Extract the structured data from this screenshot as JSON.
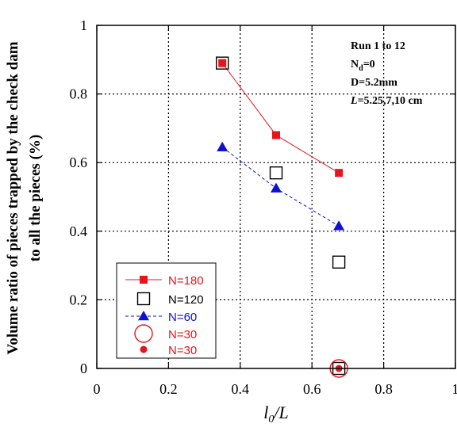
{
  "chart_data": {
    "type": "scatter",
    "xlabel_main": "l",
    "xlabel_sub": "0",
    "xlabel_tail": "/L",
    "ylabel_line1": "Volume ratio of pieces trapped by the check dam",
    "ylabel_line2": "to all the pieces (%)",
    "xlim": [
      0,
      1
    ],
    "ylim": [
      0,
      1
    ],
    "xticks": [
      0,
      0.2,
      0.4,
      0.6,
      0.8,
      1
    ],
    "xtick_labels": [
      "0",
      "0.2",
      "0.4",
      "0.6",
      "0.8",
      "1"
    ],
    "yticks": [
      0,
      0.2,
      0.4,
      0.6,
      0.8,
      1
    ],
    "ytick_labels": [
      "0",
      "0.2",
      "0.4",
      "0.6",
      "0.8",
      "1"
    ],
    "grid": "dotted",
    "annotation": {
      "line1": "Run 1 to 12",
      "line2_main": "N",
      "line2_sub": "d",
      "line2_tail": "=0",
      "line3": "D=5.2mm",
      "line4_italic": "L",
      "line4_tail": "=5.25,7,10 cm"
    },
    "legend_position": "bottom-left",
    "series": [
      {
        "name": "N=180",
        "marker": "filled-square",
        "line": "solid",
        "color": "#e8141b",
        "x": [
          0.35,
          0.5,
          0.675
        ],
        "y": [
          0.89,
          0.68,
          0.57
        ]
      },
      {
        "name": "N=120",
        "marker": "open-square",
        "line": "none",
        "color": "#000000",
        "x": [
          0.35,
          0.5,
          0.675,
          0.675
        ],
        "y": [
          0.89,
          0.57,
          0.31,
          0.0
        ]
      },
      {
        "name": "N=60",
        "marker": "filled-triangle",
        "line": "dashed",
        "color": "#1010d0",
        "x": [
          0.35,
          0.5,
          0.675
        ],
        "y": [
          0.645,
          0.525,
          0.415
        ]
      },
      {
        "name": "N=30",
        "marker": "open-circle",
        "line": "none",
        "color": "#e8141b",
        "x": [
          0.675
        ],
        "y": [
          0.0
        ]
      },
      {
        "name": "N=30",
        "marker": "filled-circle",
        "line": "none",
        "color": "#e8141b",
        "x": [
          0.675
        ],
        "y": [
          0.0
        ]
      }
    ]
  }
}
